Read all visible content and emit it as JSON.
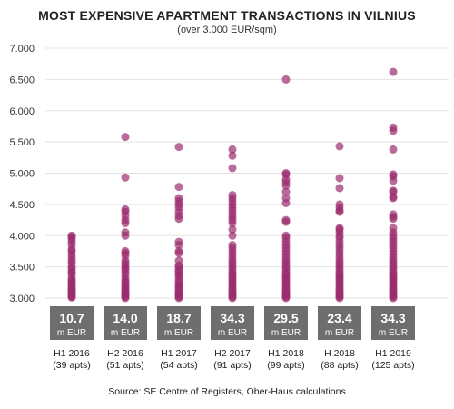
{
  "title": "MOST EXPENSIVE APARTMENT TRANSACTIONS IN VILNIUS",
  "subtitle": "(over 3.000 EUR/sqm)",
  "source": "Source: SE Centre of Registers, Ober-Haus calculations",
  "colors": {
    "dot": "#9b2c6e",
    "box": "#6d6e70",
    "grid": "#e3e3e3"
  },
  "chart_data": {
    "type": "scatter",
    "title": "MOST EXPENSIVE APARTMENT TRANSACTIONS IN VILNIUS",
    "subtitle": "(over 3.000 EUR/sqm)",
    "ylim": [
      3000,
      7000
    ],
    "yticks": [
      "3.000",
      "3.500",
      "4.000",
      "4.500",
      "5.000",
      "5.500",
      "6.000",
      "6.500",
      "7.000"
    ],
    "ytick_values": [
      3000,
      3500,
      4000,
      4500,
      5000,
      5500,
      6000,
      6500,
      7000
    ],
    "grid": true,
    "unit_label": "m EUR",
    "periods": [
      {
        "label": "H1 2016",
        "apts": "(39 apts)",
        "total": "10.7",
        "points": [
          4000,
          3980,
          3950,
          3900,
          3850,
          3780,
          3750,
          3700,
          3650,
          3600,
          3560,
          3500,
          3470,
          3420,
          3400,
          3350,
          3300,
          3280,
          3250,
          3220,
          3200,
          3180,
          3150,
          3130,
          3100,
          3080,
          3060,
          3040,
          3020,
          3010
        ]
      },
      {
        "label": "H2 2016",
        "apts": "(51 apts)",
        "total": "14.0",
        "points": [
          5580,
          4930,
          4420,
          4380,
          4320,
          4250,
          4200,
          4050,
          4000,
          3750,
          3720,
          3680,
          3600,
          3560,
          3520,
          3480,
          3450,
          3400,
          3350,
          3300,
          3270,
          3240,
          3200,
          3180,
          3150,
          3120,
          3100,
          3080,
          3060,
          3040,
          3020,
          3000
        ]
      },
      {
        "label": "H1 2017",
        "apts": "(54 apts)",
        "total": "18.7",
        "points": [
          5420,
          4780,
          4600,
          4550,
          4500,
          4450,
          4380,
          4320,
          4270,
          3900,
          3850,
          3750,
          3720,
          3600,
          3520,
          3500,
          3450,
          3420,
          3380,
          3350,
          3300,
          3260,
          3220,
          3200,
          3170,
          3140,
          3110,
          3080,
          3060,
          3040,
          3020,
          3000
        ]
      },
      {
        "label": "H2 2017",
        "apts": "(91 apts)",
        "total": "34.3",
        "points": [
          5380,
          5280,
          5080,
          4650,
          4600,
          4550,
          4500,
          4450,
          4400,
          4350,
          4300,
          4250,
          4200,
          4100,
          4000,
          3850,
          3800,
          3750,
          3700,
          3650,
          3600,
          3560,
          3520,
          3480,
          3440,
          3400,
          3370,
          3340,
          3310,
          3280,
          3250,
          3220,
          3190,
          3160,
          3130,
          3100,
          3080,
          3060,
          3040,
          3020,
          3000
        ]
      },
      {
        "label": "H1 2018",
        "apts": "(99 apts)",
        "total": "29.5",
        "points": [
          6500,
          5000,
          4980,
          4900,
          4850,
          4800,
          4700,
          4600,
          4520,
          4250,
          4220,
          4000,
          3960,
          3900,
          3850,
          3800,
          3750,
          3700,
          3650,
          3600,
          3560,
          3520,
          3480,
          3440,
          3400,
          3370,
          3340,
          3310,
          3280,
          3250,
          3220,
          3190,
          3160,
          3130,
          3100,
          3080,
          3060,
          3040,
          3020,
          3000
        ]
      },
      {
        "label": "H 2018",
        "apts": "(88 apts)",
        "total": "23.4",
        "points": [
          5430,
          4920,
          4760,
          4500,
          4450,
          4400,
          4380,
          4120,
          4100,
          4050,
          4000,
          3960,
          3900,
          3850,
          3800,
          3750,
          3700,
          3650,
          3600,
          3560,
          3520,
          3480,
          3440,
          3400,
          3370,
          3340,
          3310,
          3280,
          3250,
          3220,
          3190,
          3160,
          3130,
          3100,
          3080,
          3060,
          3040,
          3020,
          3000
        ]
      },
      {
        "label": "H1 2019",
        "apts": "(125 apts)",
        "total": "34.3",
        "points": [
          6620,
          5730,
          5680,
          5380,
          4980,
          4950,
          4880,
          4720,
          4700,
          4620,
          4600,
          4340,
          4300,
          4270,
          4120,
          4050,
          4000,
          3950,
          3900,
          3850,
          3800,
          3750,
          3700,
          3650,
          3600,
          3560,
          3520,
          3480,
          3440,
          3400,
          3370,
          3340,
          3310,
          3280,
          3250,
          3220,
          3190,
          3160,
          3130,
          3100,
          3080,
          3060,
          3040,
          3020,
          3000
        ]
      }
    ]
  }
}
